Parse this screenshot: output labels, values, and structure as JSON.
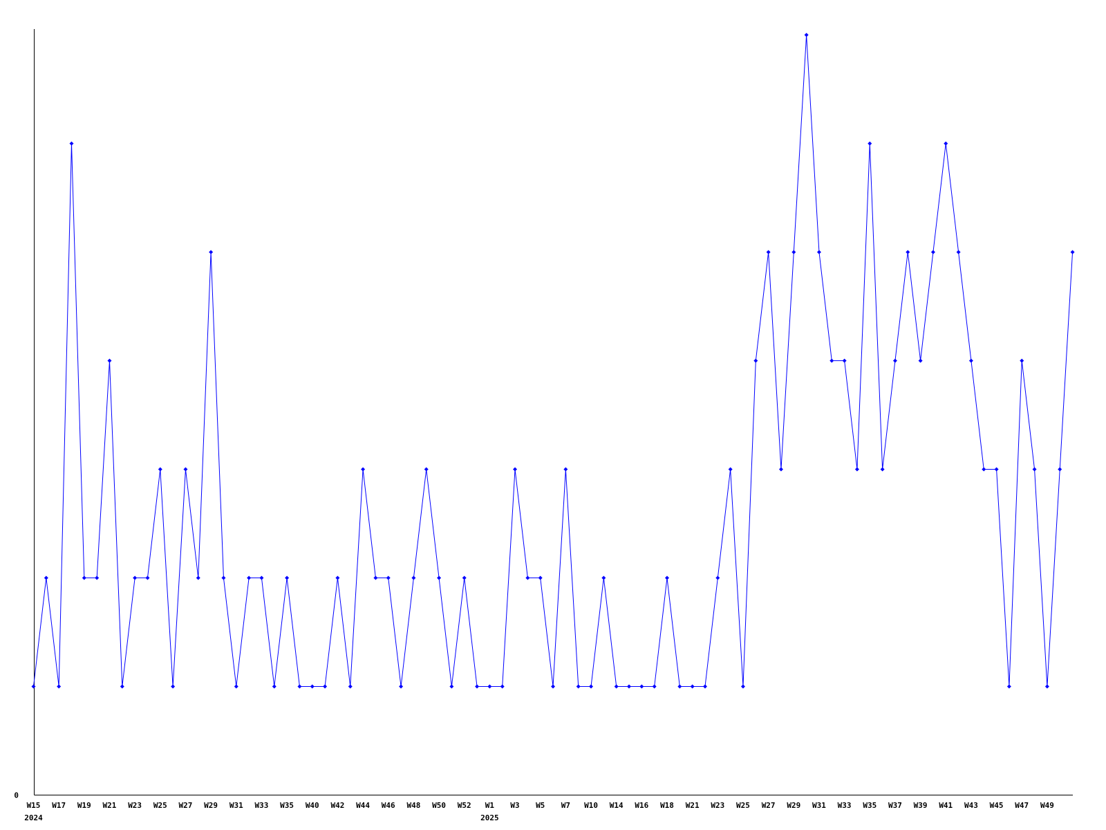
{
  "chart_data": {
    "type": "line",
    "title": "",
    "xlabel": "",
    "ylabel": "",
    "grid": false,
    "legend": "none",
    "series_name": "weekly-count",
    "line_color": "#0000ff",
    "marker": "diamond",
    "axis_color": "#000000",
    "background_color": "#ffffff",
    "y_axis": {
      "zero_label": "0",
      "min": 0,
      "max_visible_value": 7
    },
    "x_axis": {
      "tick_every": 2,
      "tick_labels": [
        "W15",
        "W17",
        "W19",
        "W21",
        "W23",
        "W25",
        "W27",
        "W29",
        "W31",
        "W33",
        "W35",
        "W40",
        "W42",
        "W44",
        "W46",
        "W48",
        "W50",
        "W52",
        "W1",
        "W3",
        "W5",
        "W7",
        "W10",
        "W14",
        "W16",
        "W18",
        "W21",
        "W23",
        "W25",
        "W27",
        "W29",
        "W31",
        "W33",
        "W35",
        "W37",
        "W39",
        "W41",
        "W43",
        "W45",
        "W47",
        "W49"
      ],
      "year_labels": [
        {
          "text": "2024",
          "category_index": 0
        },
        {
          "text": "2025",
          "category_index": 36
        }
      ]
    },
    "n_points": 83,
    "values": [
      1,
      2,
      1,
      6,
      2,
      2,
      4,
      1,
      2,
      2,
      3,
      1,
      3,
      2,
      5,
      2,
      1,
      2,
      2,
      1,
      2,
      1,
      1,
      1,
      2,
      1,
      3,
      2,
      2,
      1,
      2,
      3,
      2,
      1,
      2,
      1,
      1,
      1,
      3,
      2,
      2,
      1,
      3,
      1,
      1,
      2,
      1,
      1,
      1,
      1,
      2,
      1,
      1,
      1,
      2,
      3,
      1,
      4,
      5,
      3,
      5,
      7,
      5,
      4,
      4,
      3,
      6,
      3,
      4,
      5,
      4,
      5,
      6,
      5,
      4,
      3,
      3,
      1,
      4,
      3,
      1,
      3,
      5
    ]
  }
}
